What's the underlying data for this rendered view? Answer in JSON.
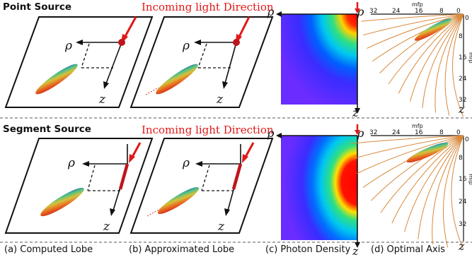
{
  "rows": [
    {
      "title": "Point Source",
      "incoming": "Incoming light Direction"
    },
    {
      "title": "Segment Source",
      "incoming": "Incoming light Direction"
    }
  ],
  "symbols": {
    "rho": "ρ",
    "z": "z"
  },
  "axis_panel": {
    "x_unit": "mfp",
    "y_unit": "mfp",
    "x_ticks": [
      "32",
      "24",
      "16",
      "8",
      "0"
    ],
    "y_ticks": [
      "0",
      "8",
      "16",
      "24",
      "32"
    ]
  },
  "captions": {
    "a": "(a) Computed Lobe",
    "b": "(b) Approximated Lobe",
    "c": "(c) Photon Density",
    "d": "(d) Optimal Axis"
  },
  "colors": {
    "arrow": "#e01818",
    "source": "#c0141c",
    "heat_bg": "#6a2cff",
    "curves": "#d8893a"
  }
}
